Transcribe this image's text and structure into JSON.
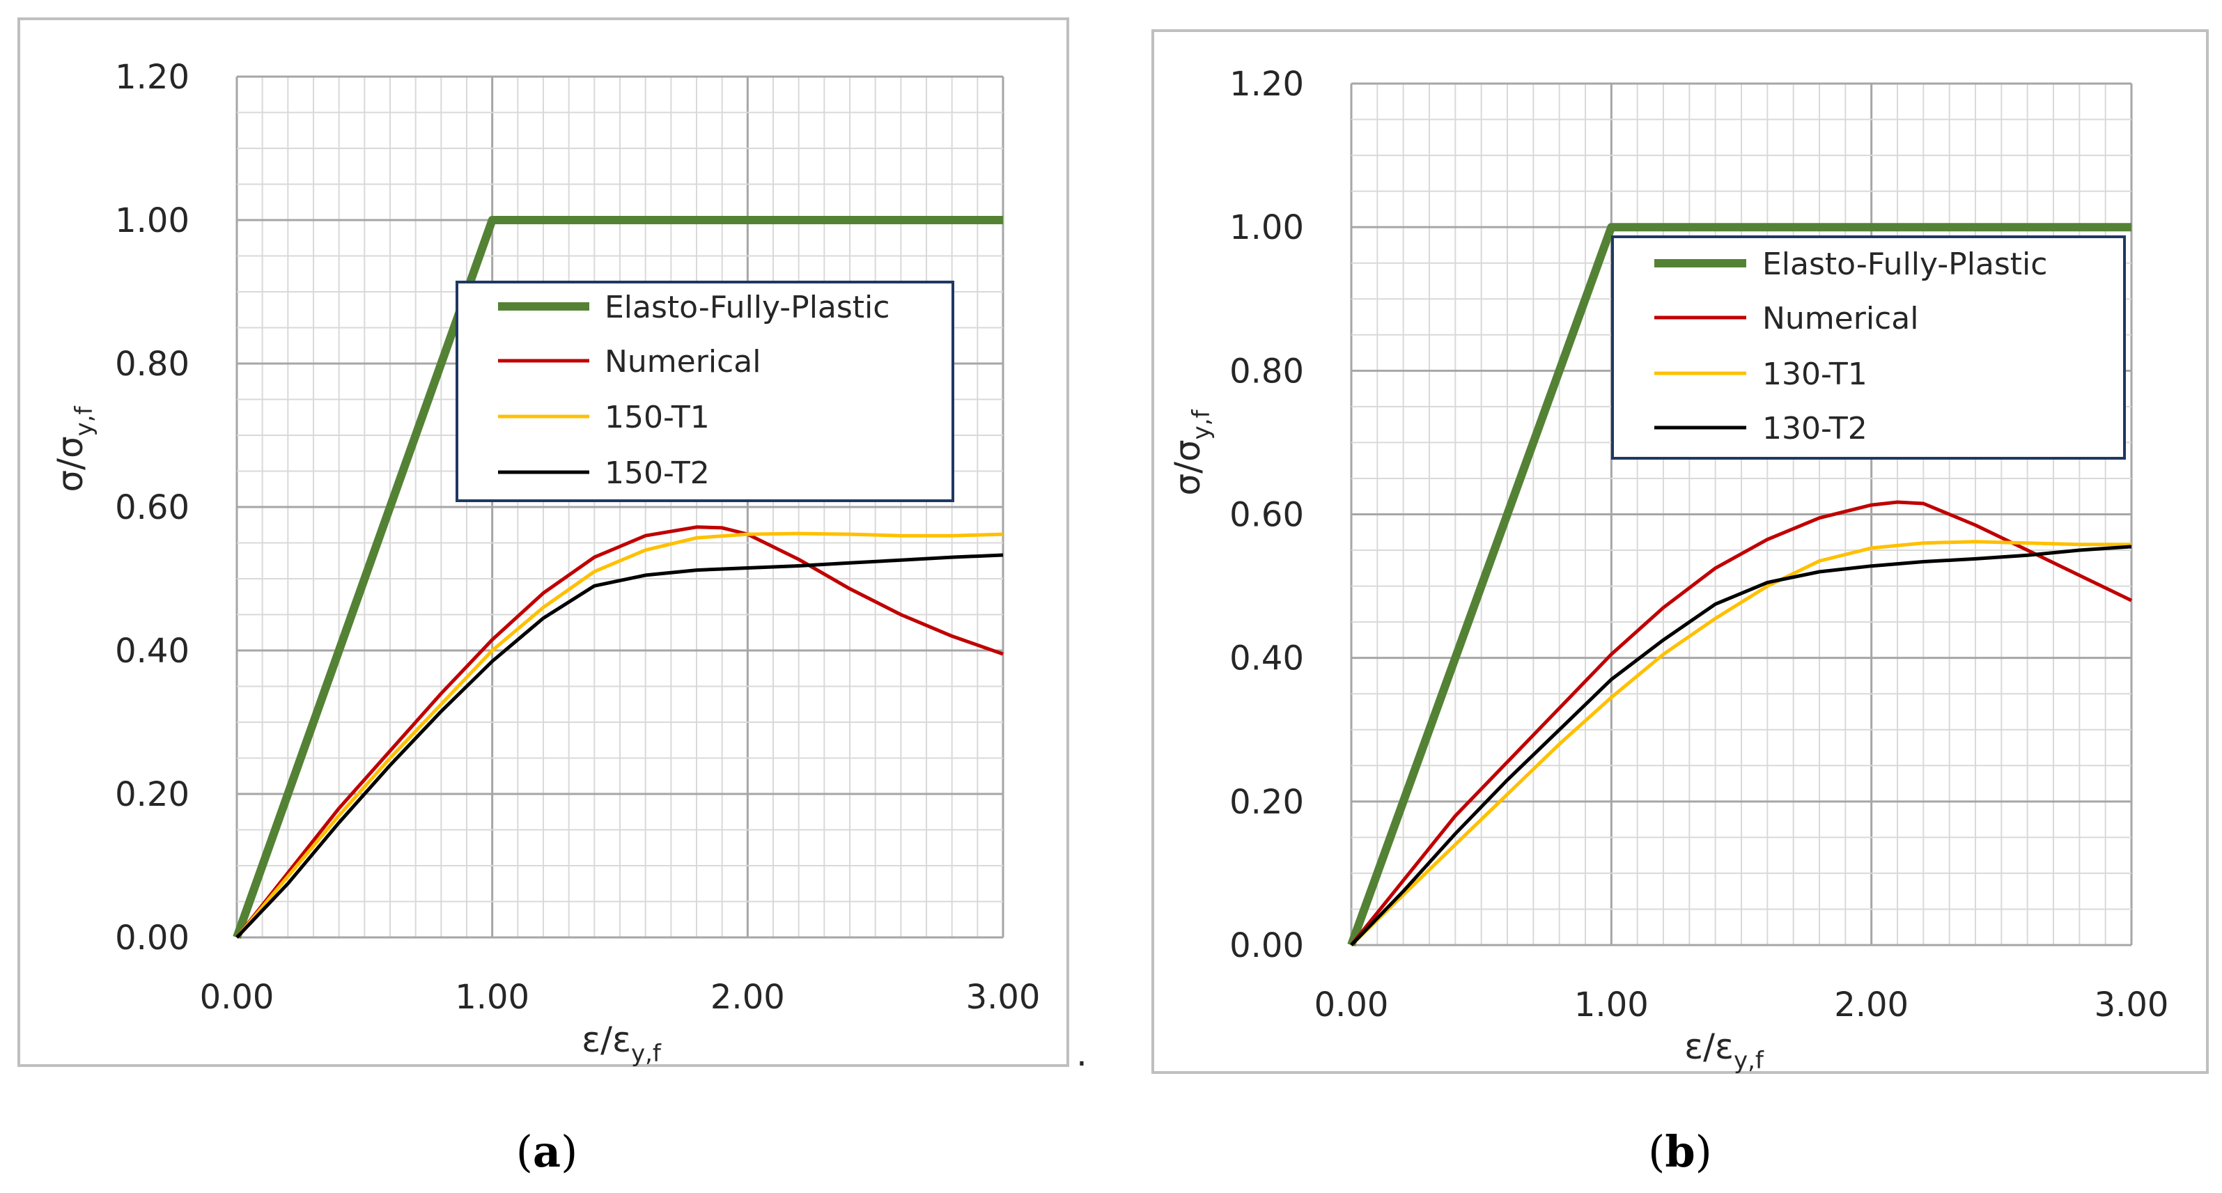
{
  "colors": {
    "efp": "#548235",
    "numerical": "#C00000",
    "t1": "#FFC000",
    "t2": "#000000",
    "grid_minor": "#D9D9D9",
    "grid_major": "#A6A6A6",
    "frame": "#BFBFBF",
    "legend_border": "#1F3864"
  },
  "trailing_mark": ".",
  "chart_data": [
    {
      "type": "line",
      "caption_open": "(",
      "caption_letter": "a",
      "caption_close": ")",
      "ylabel_main": "σ/σ",
      "ylabel_sub": "y,f",
      "xlabel_main": "ε/ε",
      "xlabel_sub": "y,f",
      "xlim": [
        0,
        3
      ],
      "ylim": [
        0,
        1.2
      ],
      "xticks": [
        "0.00",
        "1.00",
        "2.00",
        "3.00"
      ],
      "yticks": [
        "0.00",
        "0.20",
        "0.40",
        "0.60",
        "0.80",
        "1.00",
        "1.20"
      ],
      "legend": [
        "Elasto-Fully-Plastic",
        "Numerical",
        "150-T1",
        "150-T2"
      ],
      "series": [
        {
          "name": "Elasto-Fully-Plastic",
          "x": [
            0,
            1.0,
            3.0
          ],
          "y": [
            0,
            1.0,
            1.0
          ]
        },
        {
          "name": "Numerical",
          "x": [
            0,
            0.2,
            0.4,
            0.6,
            0.8,
            1.0,
            1.2,
            1.4,
            1.6,
            1.8,
            1.9,
            2.0,
            2.2,
            2.4,
            2.6,
            2.8,
            3.0
          ],
          "y": [
            0,
            0.09,
            0.18,
            0.26,
            0.34,
            0.415,
            0.48,
            0.53,
            0.56,
            0.572,
            0.571,
            0.562,
            0.527,
            0.486,
            0.45,
            0.42,
            0.395
          ]
        },
        {
          "name": "150-T1",
          "x": [
            0,
            0.2,
            0.4,
            0.6,
            0.8,
            1.0,
            1.2,
            1.4,
            1.6,
            1.8,
            2.0,
            2.2,
            2.4,
            2.6,
            2.8,
            3.0
          ],
          "y": [
            0,
            0.085,
            0.17,
            0.25,
            0.325,
            0.4,
            0.46,
            0.51,
            0.54,
            0.557,
            0.562,
            0.563,
            0.562,
            0.56,
            0.56,
            0.562
          ]
        },
        {
          "name": "150-T2",
          "x": [
            0,
            0.2,
            0.4,
            0.6,
            0.8,
            1.0,
            1.2,
            1.4,
            1.6,
            1.8,
            2.0,
            2.2,
            2.4,
            2.6,
            2.8,
            3.0
          ],
          "y": [
            0,
            0.075,
            0.16,
            0.24,
            0.315,
            0.385,
            0.445,
            0.49,
            0.505,
            0.512,
            0.515,
            0.518,
            0.522,
            0.526,
            0.53,
            0.533
          ]
        }
      ]
    },
    {
      "type": "line",
      "caption_open": "(",
      "caption_letter": "b",
      "caption_close": ")",
      "ylabel_main": "σ/σ",
      "ylabel_sub": "y,f",
      "xlabel_main": "ε/ε",
      "xlabel_sub": "y,f",
      "xlim": [
        0,
        3
      ],
      "ylim": [
        0,
        1.2
      ],
      "xticks": [
        "0.00",
        "1.00",
        "2.00",
        "3.00"
      ],
      "yticks": [
        "0.00",
        "0.20",
        "0.40",
        "0.60",
        "0.80",
        "1.00",
        "1.20"
      ],
      "legend": [
        "Elasto-Fully-Plastic",
        "Numerical",
        "130-T1",
        "130-T2"
      ],
      "series": [
        {
          "name": "Elasto-Fully-Plastic",
          "x": [
            0,
            1.0,
            3.0
          ],
          "y": [
            0,
            1.0,
            1.0
          ]
        },
        {
          "name": "Numerical",
          "x": [
            0,
            0.2,
            0.4,
            0.6,
            0.8,
            1.0,
            1.2,
            1.4,
            1.6,
            1.8,
            2.0,
            2.1,
            2.2,
            2.4,
            2.6,
            2.8,
            3.0
          ],
          "y": [
            0,
            0.09,
            0.18,
            0.255,
            0.33,
            0.405,
            0.47,
            0.525,
            0.565,
            0.595,
            0.613,
            0.617,
            0.615,
            0.585,
            0.55,
            0.515,
            0.48
          ]
        },
        {
          "name": "130-T1",
          "x": [
            0,
            0.2,
            0.4,
            0.6,
            0.8,
            1.0,
            1.2,
            1.4,
            1.6,
            1.8,
            2.0,
            2.2,
            2.4,
            2.6,
            2.8,
            3.0
          ],
          "y": [
            0,
            0.07,
            0.14,
            0.21,
            0.28,
            0.345,
            0.405,
            0.455,
            0.5,
            0.535,
            0.553,
            0.56,
            0.562,
            0.56,
            0.558,
            0.558
          ]
        },
        {
          "name": "130-T2",
          "x": [
            0,
            0.2,
            0.4,
            0.6,
            0.8,
            1.0,
            1.2,
            1.4,
            1.6,
            1.8,
            2.0,
            2.2,
            2.4,
            2.6,
            2.8,
            3.0
          ],
          "y": [
            0,
            0.075,
            0.155,
            0.23,
            0.3,
            0.37,
            0.425,
            0.475,
            0.505,
            0.52,
            0.528,
            0.534,
            0.538,
            0.543,
            0.55,
            0.555
          ]
        }
      ]
    }
  ]
}
